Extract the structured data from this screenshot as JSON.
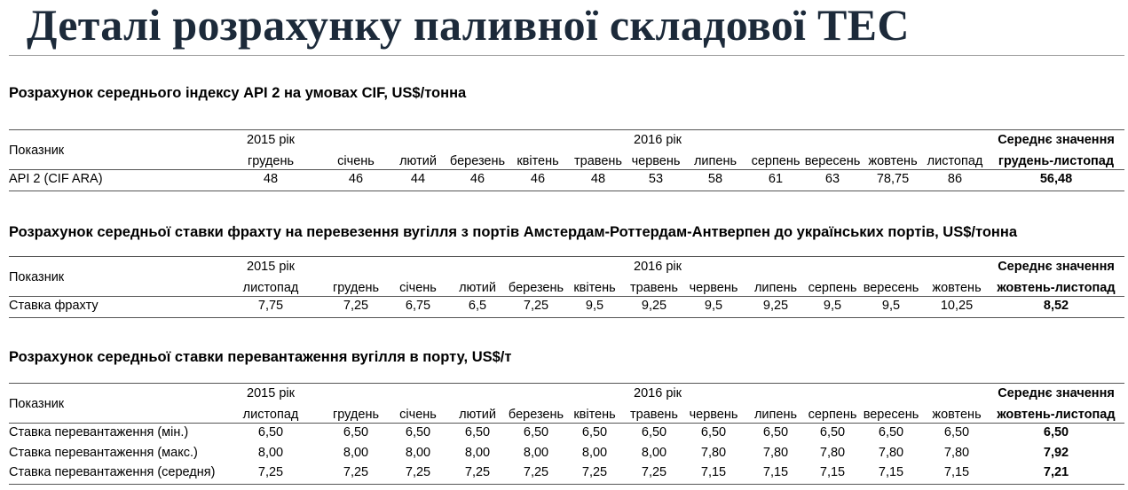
{
  "title": "Деталі розрахунку паливної складової ТЕС",
  "labels": {
    "indicator": "Показник",
    "year_2015": "2015 рік",
    "year_2016": "2016 рік",
    "avg_value": "Середнє значення"
  },
  "tables": [
    {
      "heading": "Розрахунок середнього індексу API 2 на умовах CIF, US$/тонна",
      "avg_period": "грудень-листопад",
      "months": [
        "грудень",
        "січень",
        "лютий",
        "березень",
        "квітень",
        "травень",
        "червень",
        "липень",
        "серпень",
        "вересень",
        "жовтень",
        "листопад"
      ],
      "rows": [
        {
          "name": "API 2 (CIF ARA)",
          "values": [
            "48",
            "46",
            "44",
            "46",
            "46",
            "48",
            "53",
            "58",
            "61",
            "63",
            "78,75",
            "86"
          ],
          "avg": "56,48"
        }
      ]
    },
    {
      "heading": "Розрахунок середньої ставки фрахту на перевезення вугілля з портів Амстердам-Роттердам-Антверпен до українських портів, US$/тонна",
      "avg_period": "жовтень-листопад",
      "months": [
        "листопад",
        "грудень",
        "січень",
        "лютий",
        "березень",
        "квітень",
        "травень",
        "червень",
        "липень",
        "серпень",
        "вересень",
        "жовтень"
      ],
      "rows": [
        {
          "name": "Ставка фрахту",
          "values": [
            "7,75",
            "7,25",
            "6,75",
            "6,5",
            "7,25",
            "9,5",
            "9,25",
            "9,5",
            "9,25",
            "9,5",
            "9,5",
            "10,25"
          ],
          "avg": "8,52"
        }
      ]
    },
    {
      "heading": "Розрахунок середньої ставки перевантаження вугілля в порту, US$/т",
      "avg_period": "жовтень-листопад",
      "months": [
        "листопад",
        "грудень",
        "січень",
        "лютий",
        "березень",
        "квітень",
        "травень",
        "червень",
        "липень",
        "серпень",
        "вересень",
        "жовтень"
      ],
      "rows": [
        {
          "name": "Ставка перевантаження (мін.)",
          "values": [
            "6,50",
            "6,50",
            "6,50",
            "6,50",
            "6,50",
            "6,50",
            "6,50",
            "6,50",
            "6,50",
            "6,50",
            "6,50",
            "6,50"
          ],
          "avg": "6,50"
        },
        {
          "name": "Ставка перевантаження (макс.)",
          "values": [
            "8,00",
            "8,00",
            "8,00",
            "8,00",
            "8,00",
            "8,00",
            "8,00",
            "7,80",
            "7,80",
            "7,80",
            "7,80",
            "7,80"
          ],
          "avg": "7,92"
        },
        {
          "name": "Ставка перевантаження (середня)",
          "values": [
            "7,25",
            "7,25",
            "7,25",
            "7,25",
            "7,25",
            "7,25",
            "7,25",
            "7,15",
            "7,15",
            "7,15",
            "7,15",
            "7,15"
          ],
          "avg": "7,21"
        }
      ]
    }
  ]
}
